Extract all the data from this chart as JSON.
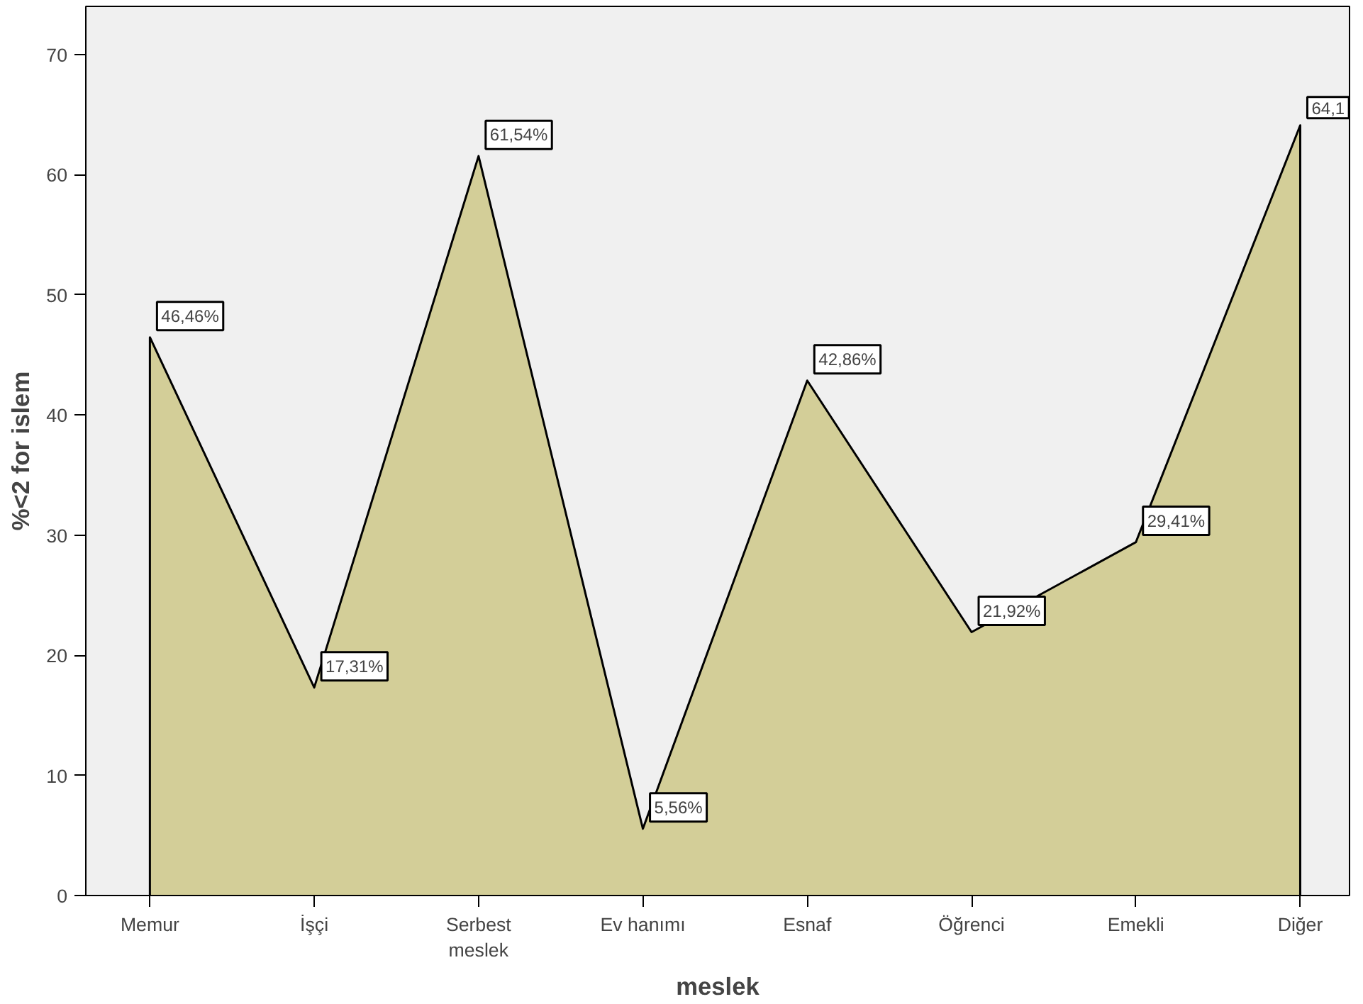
{
  "chart_data": {
    "type": "area",
    "xlabel": "meslek",
    "ylabel": "%<2 for islem",
    "categories": [
      "Memur",
      "İşçi",
      "Serbest meslek",
      "Ev hanımı",
      "Esnaf",
      "Öğrenci",
      "Emekli",
      "Diğer"
    ],
    "series": [
      {
        "color": "#d3ce98",
        "values": [
          46.46,
          17.31,
          61.54,
          5.56,
          42.86,
          21.92,
          29.41,
          64.1
        ],
        "value_labels": [
          "46,46%",
          "17,31%",
          "61,54%",
          "5,56%",
          "42,86%",
          "21,92%",
          "29,41%",
          "64,1"
        ]
      }
    ],
    "ylim": [
      0,
      74
    ],
    "yticks": [
      0,
      10,
      20,
      30,
      40,
      50,
      60,
      70
    ],
    "grid": false,
    "marker": "none",
    "line_style": "solid"
  }
}
